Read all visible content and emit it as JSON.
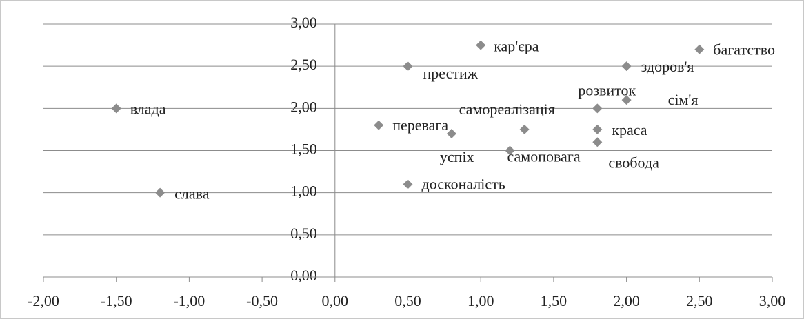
{
  "chart_data": {
    "type": "scatter",
    "labels": [
      "влада",
      "слава",
      "перевага",
      "престиж",
      "досконалість",
      "успіх",
      "кар'єра",
      "самореалізація",
      "самоповага",
      "розвиток",
      "краса",
      "свобода",
      "сім'я",
      "здоров'я",
      "багатство"
    ],
    "x": [
      -1.5,
      -1.2,
      0.3,
      0.5,
      0.5,
      0.8,
      1.0,
      1.3,
      1.2,
      1.8,
      1.8,
      1.8,
      2.0,
      2.0,
      2.5
    ],
    "values": [
      2.0,
      1.0,
      1.8,
      2.5,
      1.1,
      1.7,
      2.75,
      1.75,
      1.5,
      2.0,
      1.75,
      1.6,
      2.1,
      2.5,
      2.7
    ],
    "color": "#8c8c8c",
    "xlim": [
      -2,
      3
    ],
    "xticks": [
      {
        "value": -2,
        "label": "-2,00"
      },
      {
        "value": -1.5,
        "label": "-1,50"
      },
      {
        "value": -1,
        "label": "-1,00"
      },
      {
        "value": -0.5,
        "label": "-0,50"
      },
      {
        "value": 0,
        "label": "0,00"
      },
      {
        "value": 0.5,
        "label": "0,50"
      },
      {
        "value": 1,
        "label": "1,00"
      },
      {
        "value": 1.5,
        "label": "1,50"
      },
      {
        "value": 2,
        "label": "2,00"
      },
      {
        "value": 2.5,
        "label": "2,50"
      },
      {
        "value": 3,
        "label": "3,00"
      }
    ],
    "ylim": [
      0,
      3
    ],
    "yticks": [
      {
        "value": 0,
        "label": "0,00"
      },
      {
        "value": 0.5,
        "label": "0,50"
      },
      {
        "value": 1,
        "label": "1,00"
      },
      {
        "value": 1.5,
        "label": "1,50"
      },
      {
        "value": 2,
        "label": "2,00"
      },
      {
        "value": 2.5,
        "label": "2,50"
      },
      {
        "value": 3,
        "label": "3,00"
      }
    ],
    "grid": true
  }
}
